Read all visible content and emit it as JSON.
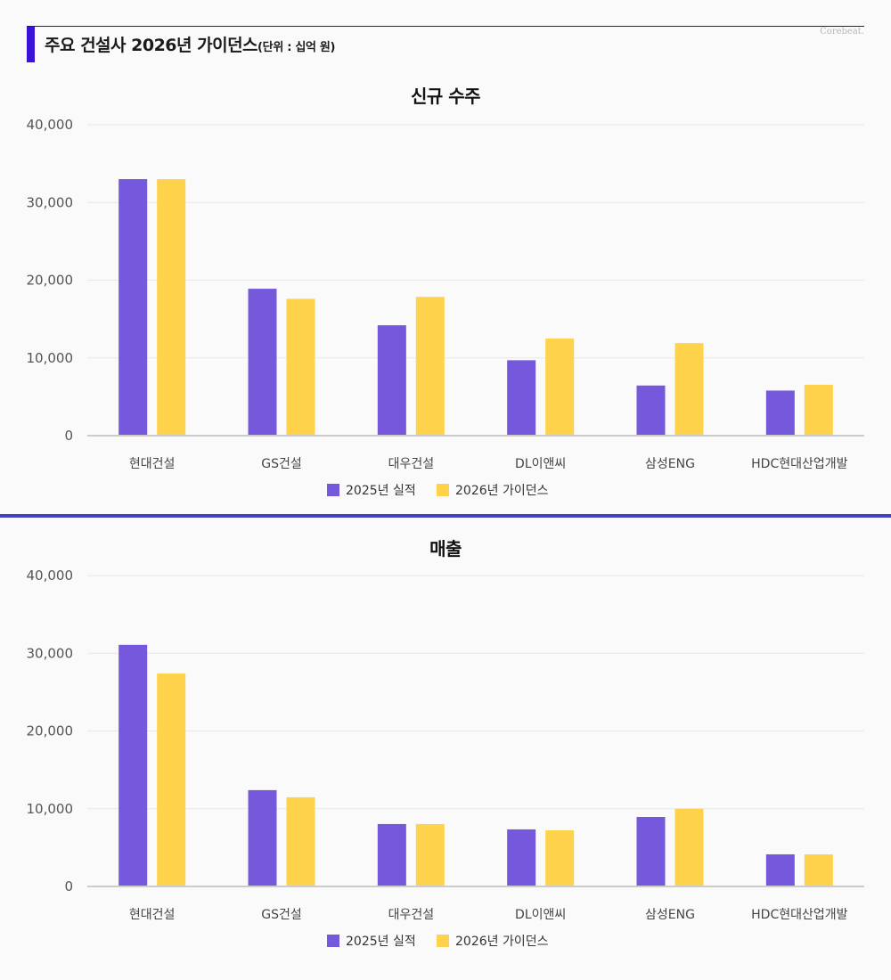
{
  "header": {
    "title": "주요 건설사 2026년 가이던스",
    "unit": "(단위 : 십억 원)",
    "brand": "Corebeat."
  },
  "colors": {
    "accent": "#3a12d8",
    "separator": "#4040c8",
    "series_2025": "#7558dc",
    "series_2026": "#fed24a",
    "grid": "#e8e8e8",
    "axis": "#cccccc"
  },
  "chart_data": [
    {
      "type": "bar",
      "title": "신규 수주",
      "xlabel": "",
      "ylabel": "",
      "ylim": [
        0,
        40000
      ],
      "yticks": [
        0,
        10000,
        20000,
        30000,
        40000
      ],
      "ytick_labels": [
        "0",
        "10,000",
        "20,000",
        "30,000",
        "40,000"
      ],
      "grid": true,
      "legend": "bottom-center",
      "categories": [
        "현대건설",
        "GS건설",
        "대우건설",
        "DL이앤씨",
        "삼성ENG",
        "HDC현대산업개발"
      ],
      "series": [
        {
          "name": "2025년 실적",
          "values": [
            33000,
            18900,
            14200,
            9700,
            6450,
            5800
          ]
        },
        {
          "name": "2026년 가이던스",
          "values": [
            33000,
            17600,
            17850,
            12500,
            11900,
            6550
          ]
        }
      ]
    },
    {
      "type": "bar",
      "title": "매출",
      "xlabel": "",
      "ylabel": "",
      "ylim": [
        0,
        40000
      ],
      "yticks": [
        0,
        10000,
        20000,
        30000,
        40000
      ],
      "ytick_labels": [
        "0",
        "10,000",
        "20,000",
        "30,000",
        "40,000"
      ],
      "grid": true,
      "legend": "bottom-center",
      "categories": [
        "현대건설",
        "GS건설",
        "대우건설",
        "DL이앤씨",
        "삼성ENG",
        "HDC현대산업개발"
      ],
      "series": [
        {
          "name": "2025년 실적",
          "values": [
            31080,
            12390,
            8030,
            7340,
            8940,
            4130
          ]
        },
        {
          "name": "2026년 가이던스",
          "values": [
            27400,
            11470,
            8030,
            7220,
            10010,
            4130
          ]
        }
      ]
    }
  ]
}
